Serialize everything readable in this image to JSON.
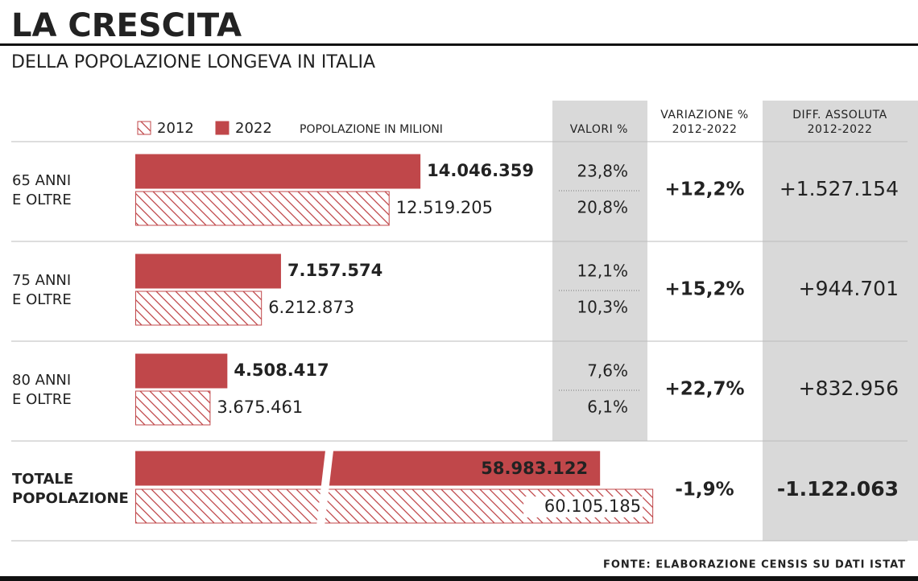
{
  "title": "LA CRESCITA",
  "subtitle": "DELLA POPOLAZIONE LONGEVA IN ITALIA",
  "source": "FONTE: ELABORAZIONE CENSIS SU DATI ISTAT",
  "chart_data": {
    "type": "bar",
    "orientation": "horizontal",
    "unit_label": "POPOLAZIONE IN MILIONI",
    "categories": [
      [
        "65 ANNI",
        "E OLTRE"
      ],
      [
        "75 ANNI",
        "E OLTRE"
      ],
      [
        "80 ANNI",
        "E OLTRE"
      ],
      [
        "TOTALE",
        "POPOLAZIONE"
      ]
    ],
    "series": [
      {
        "name": "2022",
        "color": "#c0474a",
        "pattern": "solid",
        "values": [
          14046359,
          7157574,
          4508417,
          58983122
        ],
        "value_labels": [
          "14.046.359",
          "7.157.574",
          "4.508.417",
          "58.983.122"
        ]
      },
      {
        "name": "2012",
        "color": "#c0474a",
        "pattern": "hatch",
        "values": [
          12519205,
          6212873,
          3675461,
          60105185
        ],
        "value_labels": [
          "12.519.205",
          "6.212.873",
          "3.675.461",
          "60.105.185"
        ]
      }
    ],
    "columns": [
      {
        "title": [
          "VALORI %"
        ],
        "values": [
          [
            23.8,
            20.8
          ],
          [
            12.1,
            10.3
          ],
          [
            7.6,
            6.1
          ]
        ],
        "value_labels": [
          [
            "23,8%",
            "20,8%"
          ],
          [
            "12,1%",
            "10,3%"
          ],
          [
            "7,6%",
            "6,1%"
          ]
        ]
      },
      {
        "title": [
          "VARIAZIONE %",
          "2012-2022"
        ],
        "values": [
          12.2,
          15.2,
          22.7,
          -1.9
        ],
        "value_labels": [
          "+12,2%",
          "+15,2%",
          "+22,7%",
          "-1,9%"
        ]
      },
      {
        "title": [
          "DIFF. ASSOLUTA",
          "2012-2022"
        ],
        "values": [
          1527154,
          944701,
          832956,
          -1122063
        ],
        "value_labels": [
          "+1.527.154",
          "+944.701",
          "+832.956",
          "-1.122.063"
        ]
      }
    ],
    "negative_color": "#c0474a"
  }
}
